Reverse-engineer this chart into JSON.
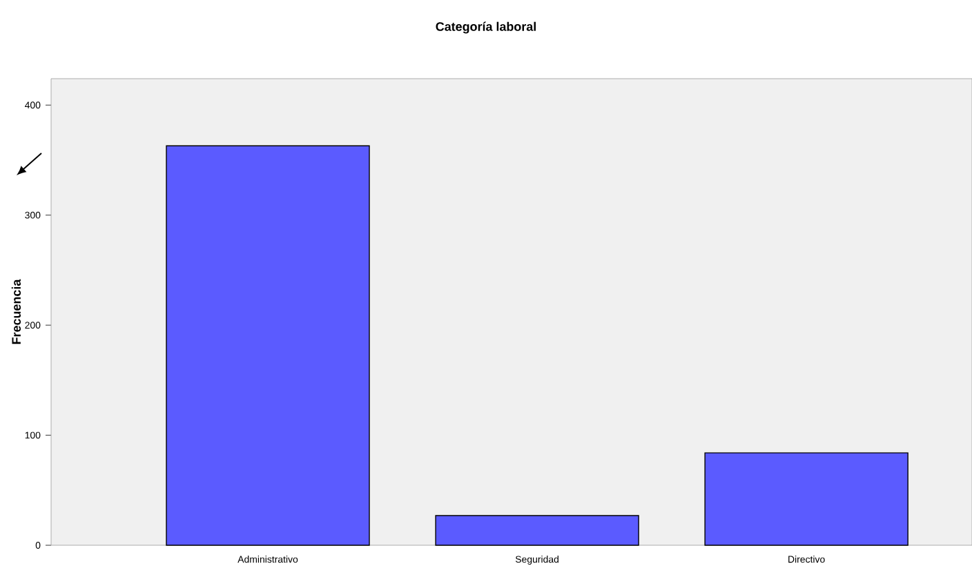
{
  "chart_data": {
    "type": "bar",
    "title": "Categoría laboral",
    "ylabel": "Frecuencia",
    "categories": [
      "Administrativo",
      "Seguridad",
      "Directivo"
    ],
    "values": [
      363,
      27,
      84
    ],
    "color": "#5b5bff",
    "ylim": [
      0,
      424
    ],
    "yticks": [
      0,
      100,
      200,
      300,
      400
    ],
    "grid": false
  }
}
